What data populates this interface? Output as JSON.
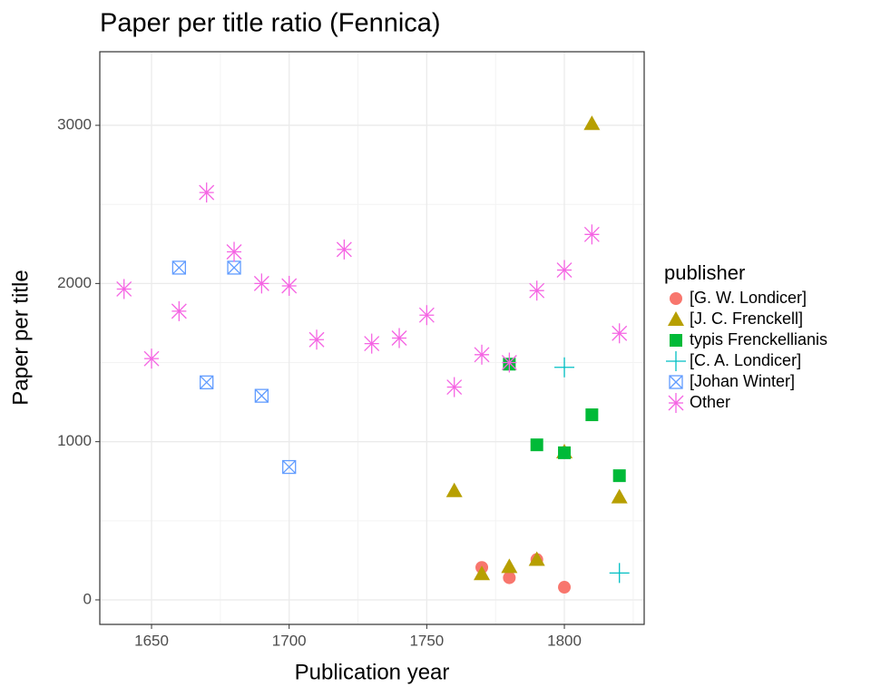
{
  "chart_data": {
    "type": "scatter",
    "title": "Paper per title ratio (Fennica)",
    "x_label": "Publication year",
    "y_label": "Paper per title",
    "xlim": [
      1631.2,
      1829
    ],
    "ylim": [
      -155,
      3465
    ],
    "xticks": [
      1650,
      1700,
      1750,
      1800
    ],
    "yticks": [
      0,
      1000,
      2000,
      3000
    ],
    "xminorticks": [
      1675,
      1725,
      1775,
      1825
    ],
    "yminorticks": [
      500,
      1500,
      2500
    ],
    "grid": true,
    "legend_title": "publisher",
    "legend_position": "right",
    "series": [
      {
        "name": "[G. W. Londicer]",
        "color": "#F8766D",
        "shape": "circle",
        "x": [
          1770,
          1780,
          1790,
          1800
        ],
        "values": [
          205,
          140,
          255,
          80
        ]
      },
      {
        "name": "[J. C. Frenckell]",
        "color": "#B79F00",
        "shape": "triangle",
        "x": [
          1760,
          1770,
          1780,
          1790,
          1800,
          1810,
          1820
        ],
        "values": [
          690,
          165,
          210,
          255,
          935,
          3010,
          650
        ]
      },
      {
        "name": "typis Frenckellianis",
        "color": "#00BA38",
        "shape": "square",
        "x": [
          1780,
          1790,
          1800,
          1810,
          1820
        ],
        "values": [
          1490,
          980,
          930,
          1170,
          785
        ]
      },
      {
        "name": "[C. A. Londicer]",
        "color": "#00BFC4",
        "shape": "plus",
        "x": [
          1800,
          1820
        ],
        "values": [
          1470,
          170
        ]
      },
      {
        "name": "[Johan Winter]",
        "color": "#619CFF",
        "shape": "square-cross",
        "x": [
          1660,
          1670,
          1680,
          1690,
          1700
        ],
        "values": [
          2100,
          1375,
          2100,
          1290,
          840
        ]
      },
      {
        "name": "Other",
        "color": "#F564E3",
        "shape": "asterisk",
        "x": [
          1640,
          1650,
          1660,
          1670,
          1680,
          1690,
          1700,
          1710,
          1720,
          1730,
          1740,
          1750,
          1760,
          1770,
          1780,
          1790,
          1800,
          1810,
          1820
        ],
        "values": [
          1965,
          1525,
          1825,
          2575,
          2200,
          2000,
          1985,
          1645,
          2215,
          1620,
          1655,
          1800,
          1345,
          1550,
          1500,
          1955,
          2085,
          2310,
          1685
        ]
      }
    ]
  }
}
